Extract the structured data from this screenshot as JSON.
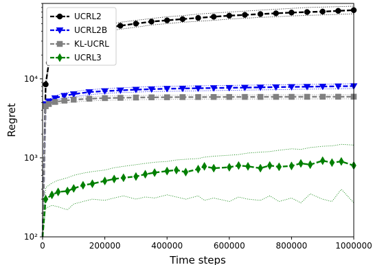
{
  "chart_data": {
    "type": "line",
    "title": "",
    "xlabel": "Time steps",
    "ylabel": "Regret",
    "xlim": [
      0,
      1000000
    ],
    "ylim": [
      100,
      90000
    ],
    "yscale": "log",
    "grid": false,
    "legend_position": "top-left",
    "x_ticks": [
      0,
      200000,
      400000,
      600000,
      800000,
      1000000
    ],
    "x_tick_labels": [
      "0",
      "200000",
      "400000",
      "600000",
      "800000",
      "1000000"
    ],
    "y_ticks": [
      100,
      1000,
      10000
    ],
    "y_tick_labels": [
      "10²",
      "10³",
      "10⁴"
    ],
    "series": [
      {
        "name": "UCRL2",
        "color": "#000000",
        "marker": "circle",
        "x": [
          0,
          10000,
          20000,
          30000,
          50000,
          100000,
          150000,
          200000,
          250000,
          300000,
          350000,
          400000,
          450000,
          500000,
          550000,
          600000,
          650000,
          700000,
          750000,
          800000,
          850000,
          900000,
          950000,
          1000000
        ],
        "values": [
          100,
          8500,
          16000,
          20000,
          27000,
          35000,
          40000,
          44000,
          47000,
          50000,
          53000,
          55000,
          57000,
          59000,
          61000,
          63000,
          64500,
          66000,
          67500,
          69000,
          70000,
          71000,
          72500,
          74000
        ],
        "upper": [
          100,
          9300,
          17500,
          22000,
          30000,
          38000,
          44000,
          48000,
          52000,
          55000,
          58000,
          61000,
          63000,
          66000,
          68000,
          70000,
          72000,
          74000,
          76000,
          78000,
          80000,
          81000,
          82000,
          83000
        ],
        "lower": [
          100,
          7800,
          14500,
          18000,
          24500,
          32000,
          36500,
          40000,
          42500,
          45000,
          48000,
          50000,
          52000,
          53500,
          55000,
          57000,
          58500,
          60000,
          61000,
          62500,
          63500,
          64500,
          65500,
          66500
        ]
      },
      {
        "name": "UCRL2B",
        "color": "#0000ee",
        "marker": "triangle-down",
        "x": [
          0,
          10000,
          20000,
          40000,
          70000,
          100000,
          150000,
          200000,
          250000,
          300000,
          350000,
          400000,
          450000,
          500000,
          550000,
          600000,
          650000,
          700000,
          750000,
          800000,
          850000,
          900000,
          950000,
          1000000
        ],
        "values": [
          100,
          4800,
          5200,
          5700,
          6100,
          6400,
          6800,
          7000,
          7150,
          7300,
          7400,
          7500,
          7550,
          7600,
          7650,
          7700,
          7750,
          7800,
          7850,
          7900,
          7950,
          8000,
          8050,
          8100
        ],
        "upper": [
          100,
          5000,
          5500,
          6100,
          6600,
          6900,
          7300,
          7500,
          7700,
          7850,
          7950,
          8050,
          8100,
          8150,
          8200,
          8250,
          8300,
          8350,
          8400,
          8450,
          8500,
          8550,
          8600,
          8700
        ],
        "lower": [
          100,
          4600,
          4950,
          5350,
          5700,
          5950,
          6300,
          6550,
          6700,
          6800,
          6900,
          6950,
          7000,
          7050,
          7100,
          7150,
          7200,
          7250,
          7300,
          7350,
          7400,
          7450,
          7500,
          7550
        ]
      },
      {
        "name": "KL-UCRL",
        "color": "#808080",
        "marker": "square",
        "x": [
          0,
          10000,
          20000,
          40000,
          70000,
          100000,
          150000,
          200000,
          250000,
          300000,
          350000,
          400000,
          450000,
          500000,
          550000,
          600000,
          650000,
          700000,
          750000,
          800000,
          850000,
          900000,
          950000,
          1000000
        ],
        "values": [
          100,
          4500,
          4800,
          5100,
          5300,
          5450,
          5600,
          5700,
          5750,
          5800,
          5830,
          5850,
          5870,
          5880,
          5890,
          5900,
          5905,
          5910,
          5915,
          5920,
          5925,
          5930,
          5935,
          5940
        ],
        "upper": [
          100,
          4700,
          5050,
          5400,
          5650,
          5800,
          5950,
          6050,
          6100,
          6150,
          6180,
          6200,
          6220,
          6230,
          6240,
          6250,
          6255,
          6260,
          6265,
          6270,
          6275,
          6280,
          6285,
          6290
        ],
        "lower": [
          100,
          4300,
          4550,
          4800,
          4950,
          5100,
          5250,
          5350,
          5400,
          5450,
          5480,
          5500,
          5520,
          5530,
          5540,
          5550,
          5555,
          5560,
          5565,
          5570,
          5575,
          5580,
          5585,
          5590
        ]
      },
      {
        "name": "UCRL3",
        "color": "#007f00",
        "marker": "diamond",
        "x": [
          0,
          10000,
          30000,
          50000,
          80000,
          100000,
          130000,
          160000,
          200000,
          230000,
          260000,
          300000,
          330000,
          360000,
          400000,
          430000,
          460000,
          500000,
          520000,
          550000,
          600000,
          630000,
          660000,
          700000,
          730000,
          760000,
          800000,
          830000,
          860000,
          900000,
          930000,
          960000,
          1000000
        ],
        "values": [
          100,
          300,
          340,
          370,
          380,
          410,
          450,
          470,
          510,
          540,
          560,
          580,
          620,
          650,
          680,
          700,
          660,
          720,
          780,
          740,
          760,
          800,
          780,
          740,
          800,
          770,
          790,
          850,
          820,
          920,
          870,
          900,
          800
        ],
        "upper": [
          100,
          420,
          480,
          520,
          560,
          600,
          640,
          670,
          700,
          750,
          780,
          820,
          850,
          880,
          900,
          940,
          960,
          980,
          1020,
          1050,
          1080,
          1100,
          1150,
          1180,
          1200,
          1250,
          1300,
          1280,
          1350,
          1400,
          1420,
          1480,
          1450
        ],
        "lower": [
          100,
          230,
          250,
          240,
          220,
          260,
          280,
          300,
          290,
          310,
          330,
          300,
          320,
          310,
          340,
          320,
          300,
          330,
          290,
          310,
          280,
          320,
          300,
          290,
          330,
          280,
          310,
          270,
          350,
          300,
          280,
          400,
          270
        ]
      }
    ]
  }
}
